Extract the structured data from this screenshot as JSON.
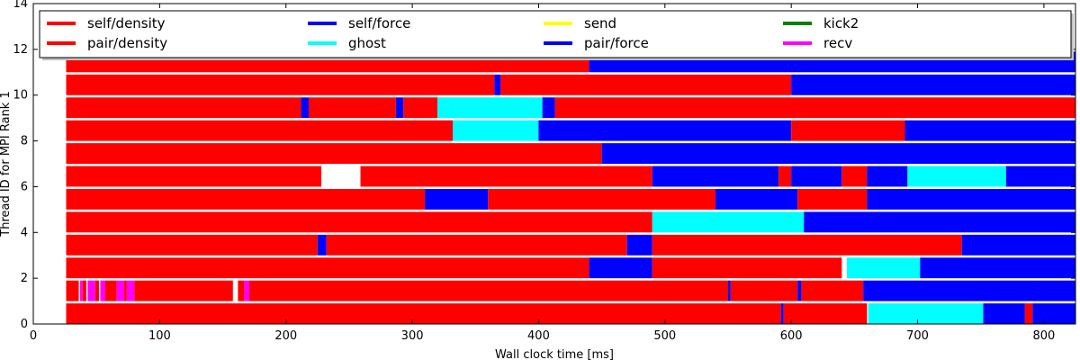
{
  "chart_data": {
    "type": "bar",
    "subtype": "timeline",
    "title": "",
    "xlabel": "Wall clock time [ms]",
    "ylabel": "Thread ID for MPI Rank 1",
    "xlim": [
      0,
      825
    ],
    "ylim": [
      0,
      14
    ],
    "x_ticks": [
      0,
      100,
      200,
      300,
      400,
      500,
      600,
      700,
      800
    ],
    "y_ticks": [
      0,
      2,
      4,
      6,
      8,
      10,
      12,
      14
    ],
    "legend_placement": "top",
    "legend": [
      {
        "name": "self/density",
        "color": "#ff0000"
      },
      {
        "name": "pair/density",
        "color": "#ff0000"
      },
      {
        "name": "self/force",
        "color": "#0000ff"
      },
      {
        "name": "ghost",
        "color": "#00ffff"
      },
      {
        "name": "send",
        "color": "#ffff00"
      },
      {
        "name": "pair/force",
        "color": "#0000ff"
      },
      {
        "name": "kick2",
        "color": "#008000"
      },
      {
        "name": "recv",
        "color": "#ff00ff"
      }
    ],
    "threads": [
      {
        "thread": 0,
        "segments": [
          {
            "task": "pair/density",
            "start": 26,
            "end": 592
          },
          {
            "task": "pair/force",
            "start": 592,
            "end": 594
          },
          {
            "task": "pair/density",
            "start": 594,
            "end": 660
          },
          {
            "task": "ghost",
            "start": 661,
            "end": 752
          },
          {
            "task": "pair/force",
            "start": 752,
            "end": 785
          },
          {
            "task": "pair/density",
            "start": 785,
            "end": 791
          },
          {
            "task": "pair/force",
            "start": 791,
            "end": 825
          }
        ]
      },
      {
        "thread": 1,
        "segments": [
          {
            "task": "pair/density",
            "start": 26,
            "end": 36
          },
          {
            "task": "recv",
            "start": 37,
            "end": 39
          },
          {
            "task": "pair/density",
            "start": 39,
            "end": 42
          },
          {
            "task": "recv",
            "start": 43,
            "end": 49
          },
          {
            "task": "pair/density",
            "start": 49,
            "end": 52
          },
          {
            "task": "recv",
            "start": 53,
            "end": 57
          },
          {
            "task": "pair/density",
            "start": 57,
            "end": 66
          },
          {
            "task": "recv",
            "start": 66,
            "end": 72
          },
          {
            "task": "pair/density",
            "start": 72,
            "end": 74
          },
          {
            "task": "recv",
            "start": 74,
            "end": 80
          },
          {
            "task": "pair/density",
            "start": 80,
            "end": 158
          },
          {
            "task": "pair/density",
            "start": 162,
            "end": 167
          },
          {
            "task": "recv",
            "start": 167,
            "end": 171
          },
          {
            "task": "pair/density",
            "start": 171,
            "end": 550
          },
          {
            "task": "pair/force",
            "start": 550,
            "end": 552
          },
          {
            "task": "pair/density",
            "start": 552,
            "end": 605
          },
          {
            "task": "pair/force",
            "start": 605,
            "end": 608
          },
          {
            "task": "pair/density",
            "start": 608,
            "end": 657
          },
          {
            "task": "pair/force",
            "start": 657,
            "end": 825
          }
        ]
      },
      {
        "thread": 2,
        "segments": [
          {
            "task": "pair/density",
            "start": 26,
            "end": 440
          },
          {
            "task": "pair/force",
            "start": 440,
            "end": 490
          },
          {
            "task": "pair/density",
            "start": 490,
            "end": 640
          },
          {
            "task": "ghost",
            "start": 644,
            "end": 702
          },
          {
            "task": "pair/force",
            "start": 702,
            "end": 825
          }
        ]
      },
      {
        "thread": 3,
        "segments": [
          {
            "task": "pair/density",
            "start": 26,
            "end": 225
          },
          {
            "task": "pair/force",
            "start": 225,
            "end": 232
          },
          {
            "task": "pair/density",
            "start": 232,
            "end": 470
          },
          {
            "task": "pair/force",
            "start": 470,
            "end": 490
          },
          {
            "task": "pair/density",
            "start": 490,
            "end": 735
          },
          {
            "task": "pair/force",
            "start": 735,
            "end": 825
          }
        ]
      },
      {
        "thread": 4,
        "segments": [
          {
            "task": "pair/density",
            "start": 26,
            "end": 490
          },
          {
            "task": "ghost",
            "start": 490,
            "end": 610
          },
          {
            "task": "pair/force",
            "start": 610,
            "end": 825
          }
        ]
      },
      {
        "thread": 5,
        "segments": [
          {
            "task": "pair/density",
            "start": 26,
            "end": 310
          },
          {
            "task": "pair/force",
            "start": 310,
            "end": 360
          },
          {
            "task": "pair/density",
            "start": 360,
            "end": 540
          },
          {
            "task": "pair/force",
            "start": 540,
            "end": 605
          },
          {
            "task": "pair/density",
            "start": 605,
            "end": 660
          },
          {
            "task": "pair/force",
            "start": 660,
            "end": 825
          }
        ]
      },
      {
        "thread": 6,
        "segments": [
          {
            "task": "pair/density",
            "start": 26,
            "end": 228
          },
          {
            "task": "pair/density",
            "start": 259,
            "end": 490
          },
          {
            "task": "pair/force",
            "start": 490,
            "end": 590
          },
          {
            "task": "pair/density",
            "start": 590,
            "end": 600
          },
          {
            "task": "pair/force",
            "start": 600,
            "end": 640
          },
          {
            "task": "pair/density",
            "start": 640,
            "end": 660
          },
          {
            "task": "pair/force",
            "start": 660,
            "end": 692
          },
          {
            "task": "ghost",
            "start": 692,
            "end": 770
          },
          {
            "task": "pair/force",
            "start": 770,
            "end": 825
          }
        ]
      },
      {
        "thread": 7,
        "segments": [
          {
            "task": "pair/density",
            "start": 26,
            "end": 450
          },
          {
            "task": "pair/force",
            "start": 450,
            "end": 825
          }
        ]
      },
      {
        "thread": 8,
        "segments": [
          {
            "task": "pair/density",
            "start": 26,
            "end": 332
          },
          {
            "task": "ghost",
            "start": 332,
            "end": 400
          },
          {
            "task": "pair/force",
            "start": 400,
            "end": 600
          },
          {
            "task": "pair/density",
            "start": 600,
            "end": 690
          },
          {
            "task": "pair/force",
            "start": 690,
            "end": 825
          }
        ]
      },
      {
        "thread": 9,
        "segments": [
          {
            "task": "pair/density",
            "start": 26,
            "end": 212
          },
          {
            "task": "pair/force",
            "start": 212,
            "end": 218
          },
          {
            "task": "pair/density",
            "start": 218,
            "end": 287
          },
          {
            "task": "pair/force",
            "start": 287,
            "end": 293
          },
          {
            "task": "pair/density",
            "start": 293,
            "end": 320
          },
          {
            "task": "ghost",
            "start": 320,
            "end": 403
          },
          {
            "task": "pair/force",
            "start": 403,
            "end": 413
          },
          {
            "task": "pair/density",
            "start": 413,
            "end": 825
          }
        ]
      },
      {
        "thread": 10,
        "segments": [
          {
            "task": "pair/density",
            "start": 26,
            "end": 365
          },
          {
            "task": "pair/force",
            "start": 365,
            "end": 370
          },
          {
            "task": "pair/density",
            "start": 370,
            "end": 600
          },
          {
            "task": "pair/force",
            "start": 600,
            "end": 825
          }
        ]
      },
      {
        "thread": 11,
        "segments": [
          {
            "task": "pair/density",
            "start": 26,
            "end": 440
          },
          {
            "task": "pair/force",
            "start": 440,
            "end": 825
          }
        ]
      }
    ]
  }
}
